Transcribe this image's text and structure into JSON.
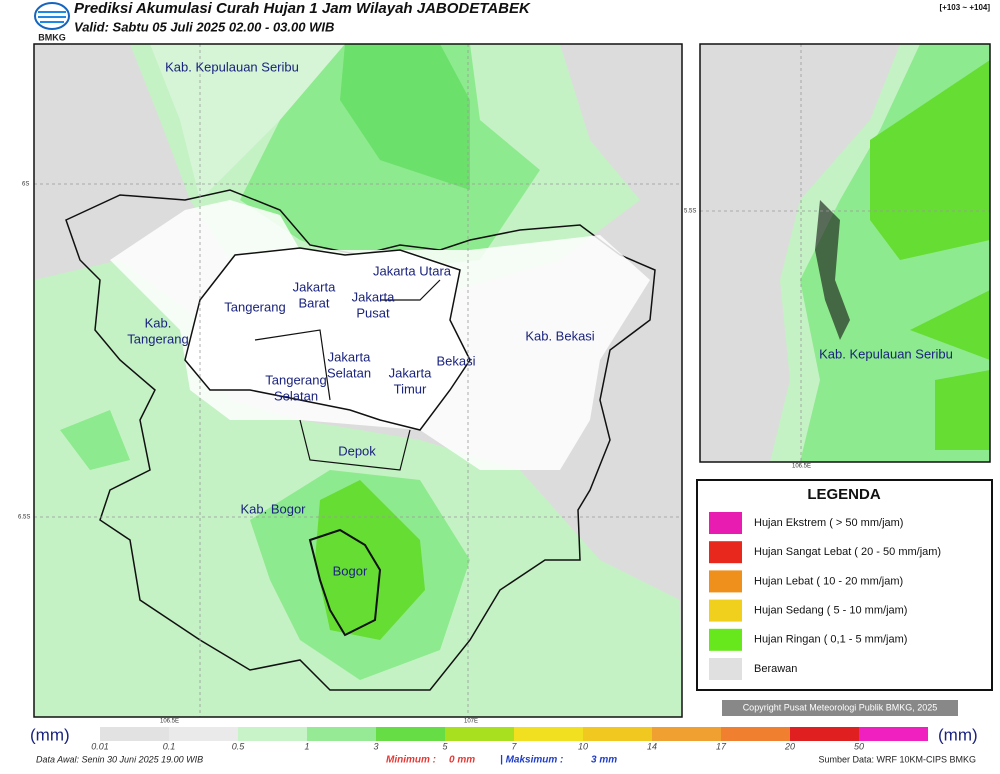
{
  "header": {
    "title": "Prediksi Akumulasi Curah Hujan 1 Jam Wilayah JABODETABEK",
    "subtitle": "Valid: Sabtu 05 Juli 2025 02.00 - 03.00 WIB",
    "logo": "BMKG",
    "range": "[+103 ~ +104]"
  },
  "map": {
    "labels": [
      [
        "Kab. Kepulauan Seribu"
      ],
      [
        "Jakarta Utara"
      ],
      [
        "Jakarta",
        "Barat"
      ],
      [
        "Jakarta",
        "Pusat"
      ],
      [
        "Tangerang"
      ],
      [
        "Kab.",
        "Tangerang"
      ],
      [
        "Jakarta",
        "Selatan"
      ],
      [
        "Jakarta",
        "Timur"
      ],
      [
        "Bekasi"
      ],
      [
        "Kab. Bekasi"
      ],
      [
        "Tangerang",
        "Selatan"
      ],
      [
        "Depok"
      ],
      [
        "Kab. Bogor"
      ],
      [
        "Bogor"
      ]
    ],
    "grid_labels": [
      "6S",
      "6.5S",
      "106.5E",
      "107E"
    ]
  },
  "inset": {
    "label": "Kab. Kepulauan Seribu",
    "grid_labels": [
      "5.5S",
      "106.5E"
    ]
  },
  "legend": {
    "title": "LEGENDA",
    "items": [
      "Hujan Ekstrem ( > 50 mm/jam)",
      "Hujan Sangat Lebat ( 20 - 50 mm/jam)",
      "Hujan Lebat ( 10 - 20 mm/jam)",
      "Hujan Sedang ( 5 - 10 mm/jam)",
      "Hujan Ringan ( 0,1 - 5 mm/jam)",
      "Berawan"
    ]
  },
  "copyright": "Copyright Pusat Meteorologi Publik BMKG, 2025",
  "colorbar": {
    "unit": "(mm)",
    "ticks": [
      "0.01",
      "0.1",
      "0.5",
      "1",
      "3",
      "5",
      "7",
      "10",
      "14",
      "17",
      "20",
      "50"
    ]
  },
  "footer": {
    "data_awal": "Data Awal: Senin 30 Juni 2025 19.00 WIB",
    "minimum_label": "Minimum :",
    "minimum": "0 mm",
    "maksimum_label": "| Maksimum :",
    "maksimum": "3 mm",
    "source": "Sumber Data: WRF 10KM-CIPS BMKG"
  }
}
